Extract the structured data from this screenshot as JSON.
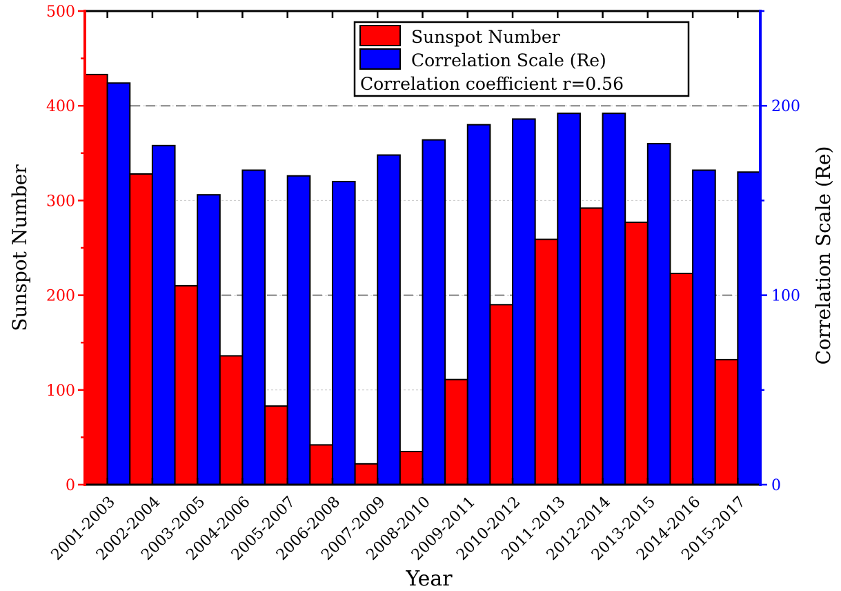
{
  "chart_data": {
    "type": "bar",
    "categories": [
      "2001-2003",
      "2002-2004",
      "2003-2005",
      "2004-2006",
      "2005-2007",
      "2006-2008",
      "2007-2009",
      "2008-2010",
      "2009-2011",
      "2010-2012",
      "2011-2013",
      "2012-2014",
      "2013-2015",
      "2014-2016",
      "2015-2017"
    ],
    "series": [
      {
        "name": "Sunspot Number",
        "axis": "left",
        "color": "#ff0000",
        "values": [
          433,
          328,
          210,
          136,
          83,
          42,
          22,
          35,
          111,
          190,
          259,
          292,
          277,
          223,
          132
        ]
      },
      {
        "name": "Correlation Scale (Re)",
        "axis": "right",
        "color": "#0000ff",
        "values": [
          212,
          179,
          153,
          166,
          163,
          160,
          174,
          182,
          190,
          193,
          196,
          196,
          180,
          166,
          165
        ]
      }
    ],
    "xlabel": "Year",
    "ylabel_left": "Sunspot Number",
    "ylabel_right": "Correlation Scale (Re)",
    "ylim_left": [
      0,
      500
    ],
    "ylim_right": [
      0,
      250
    ],
    "left_ticks": [
      0,
      100,
      200,
      300,
      400,
      500
    ],
    "right_ticks": [
      0,
      100,
      200
    ],
    "left_axis_color": "#ff0000",
    "right_axis_color": "#0000ff",
    "grid": "dashed horizontal",
    "legend_position": "top-center",
    "annotation": "Correlation coefficient r=0.56"
  }
}
